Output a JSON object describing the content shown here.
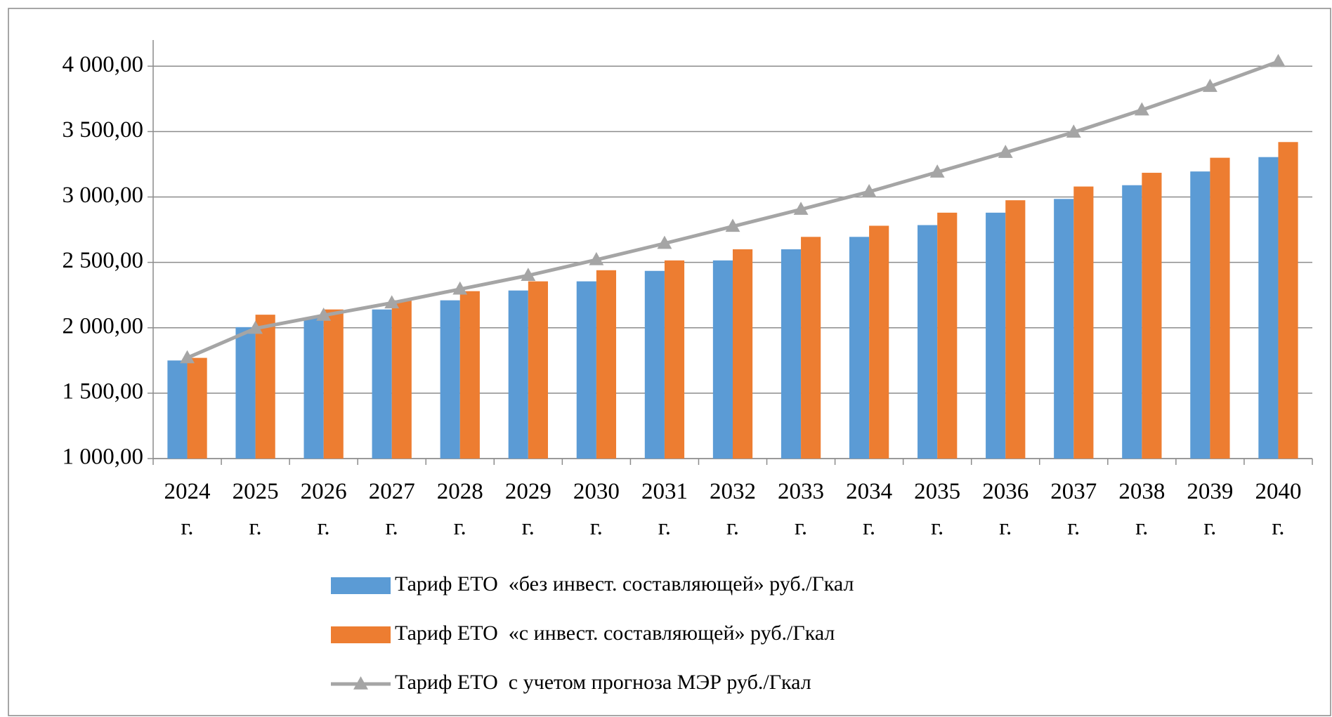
{
  "chart_data": {
    "type": "bar",
    "categories": [
      "2024 г.",
      "2025 г.",
      "2026 г.",
      "2027 г.",
      "2028 г.",
      "2029 г.",
      "2030 г.",
      "2031 г.",
      "2032 г.",
      "2033 г.",
      "2034 г.",
      "2035 г.",
      "2036 г.",
      "2037 г.",
      "2038 г.",
      "2039 г.",
      "2040 г."
    ],
    "series": [
      {
        "name": "Тариф ЕТО  «без инвест. составляющей» руб./Гкал",
        "type": "bar",
        "color": "#5b9bd5",
        "values": [
          1750,
          2005,
          2075,
          2140,
          2210,
          2285,
          2355,
          2435,
          2515,
          2600,
          2695,
          2785,
          2880,
          2985,
          3090,
          3195,
          3305
        ]
      },
      {
        "name": "Тариф ЕТО  «с инвест. составляющей» руб./Гкал",
        "type": "bar",
        "color": "#ed7d31",
        "values": [
          1770,
          2100,
          2140,
          2210,
          2280,
          2355,
          2440,
          2515,
          2600,
          2695,
          2780,
          2880,
          2975,
          3080,
          3185,
          3300,
          3420
        ]
      },
      {
        "name": "Тариф ЕТО  с учетом прогноза МЭР руб./Гкал",
        "type": "line",
        "color": "#a5a5a5",
        "values": [
          1770,
          1995,
          2095,
          2190,
          2295,
          2400,
          2520,
          2645,
          2775,
          2905,
          3040,
          3190,
          3340,
          3495,
          3665,
          3845,
          4035
        ]
      }
    ],
    "ylim": [
      1000,
      4200
    ],
    "yticks": [
      {
        "value": 1000,
        "label": "1 000,00"
      },
      {
        "value": 1500,
        "label": "1 500,00"
      },
      {
        "value": 2000,
        "label": "2 000,00"
      },
      {
        "value": 2500,
        "label": "2 500,00"
      },
      {
        "value": 3000,
        "label": "3 000,00"
      },
      {
        "value": 3500,
        "label": "3 500,00"
      },
      {
        "value": 4000,
        "label": "4 000,00"
      }
    ],
    "grid": true,
    "legend": "bottom"
  }
}
